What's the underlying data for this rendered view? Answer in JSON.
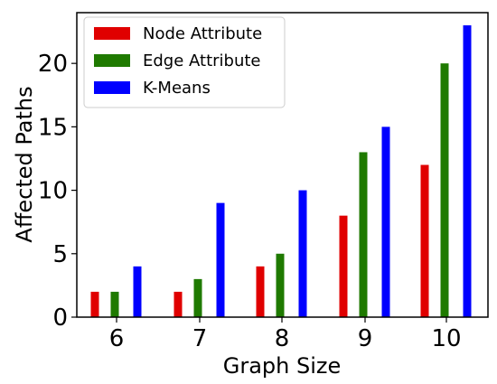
{
  "chart_data": {
    "type": "bar",
    "categories": [
      "6",
      "7",
      "8",
      "9",
      "10"
    ],
    "series": [
      {
        "name": "Node Attribute",
        "color": "#e00000",
        "values": [
          2,
          2,
          4,
          8,
          12
        ]
      },
      {
        "name": "Edge Attribute",
        "color": "#1f7a00",
        "values": [
          2,
          3,
          5,
          13,
          20
        ]
      },
      {
        "name": "K-Means",
        "color": "#0000ff",
        "values": [
          4,
          9,
          10,
          15,
          23
        ]
      }
    ],
    "xlabel": "Graph Size",
    "ylabel": "Affected Paths",
    "ylim": [
      0,
      24
    ],
    "yticks": [
      0,
      5,
      10,
      15,
      20
    ],
    "grid": false,
    "legend_position": "top-left"
  }
}
